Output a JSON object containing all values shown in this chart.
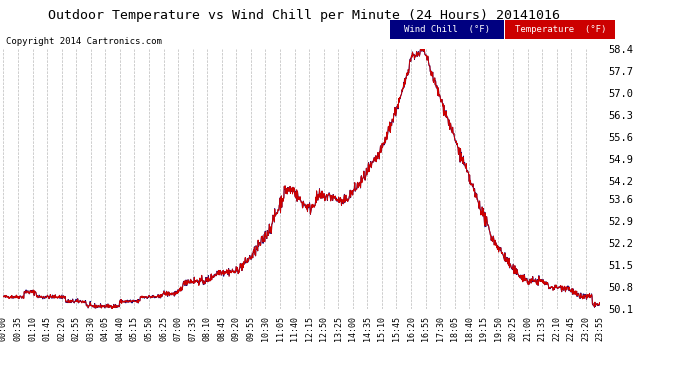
{
  "title": "Outdoor Temperature vs Wind Chill per Minute (24 Hours) 20141016",
  "copyright": "Copyright 2014 Cartronics.com",
  "background_color": "#ffffff",
  "plot_bg_color": "#ffffff",
  "grid_color": "#aaaaaa",
  "temp_color": "#cc0000",
  "wind_chill_color": "#000080",
  "ylim": [
    50.1,
    58.4
  ],
  "yticks": [
    50.1,
    50.8,
    51.5,
    52.2,
    52.9,
    53.6,
    54.2,
    54.9,
    55.6,
    56.3,
    57.0,
    57.7,
    58.4
  ],
  "xtick_labels": [
    "00:00",
    "00:35",
    "01:10",
    "01:45",
    "02:20",
    "02:55",
    "03:30",
    "04:05",
    "04:40",
    "05:15",
    "05:50",
    "06:25",
    "07:00",
    "07:35",
    "08:10",
    "08:45",
    "09:20",
    "09:55",
    "10:30",
    "11:05",
    "11:40",
    "12:15",
    "12:50",
    "13:25",
    "14:00",
    "14:35",
    "15:10",
    "15:45",
    "16:20",
    "16:55",
    "17:30",
    "18:05",
    "18:40",
    "19:15",
    "19:50",
    "20:25",
    "21:00",
    "21:35",
    "22:10",
    "22:45",
    "23:20",
    "23:55"
  ],
  "legend_wind_chill_label": "Wind Chill  (°F)",
  "legend_temp_label": "Temperature  (°F)"
}
